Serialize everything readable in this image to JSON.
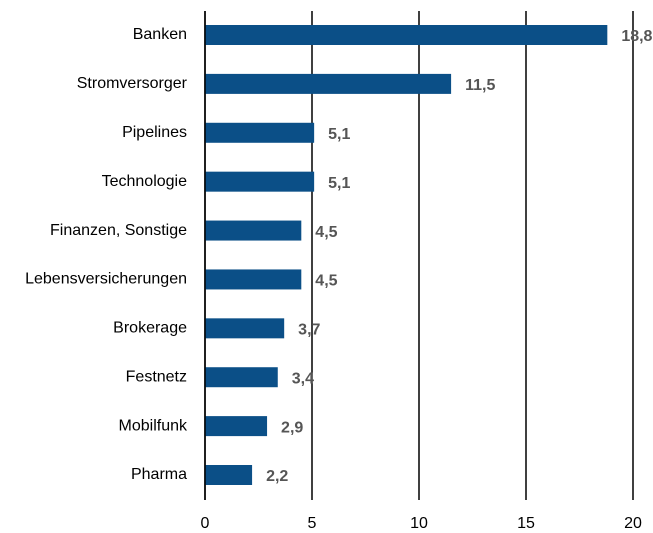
{
  "chart_data": {
    "type": "barh",
    "categories": [
      "Banken",
      "Stromversorger",
      "Pipelines",
      "Technologie",
      "Finanzen, Sonstige",
      "Lebensversicherungen",
      "Brokerage",
      "Festnetz",
      "Mobilfunk",
      "Pharma"
    ],
    "values": [
      18.8,
      11.5,
      5.1,
      5.1,
      4.5,
      4.5,
      3.7,
      3.4,
      2.9,
      2.2
    ],
    "value_labels": [
      "18,8",
      "11,5",
      "5,1",
      "5,1",
      "4,5",
      "4,5",
      "3,7",
      "3,4",
      "2,9",
      "2,2"
    ],
    "color": "#0b4f87",
    "xlim": [
      0,
      20
    ],
    "xticks": [
      0,
      5,
      10,
      15,
      20
    ],
    "grid": true
  }
}
